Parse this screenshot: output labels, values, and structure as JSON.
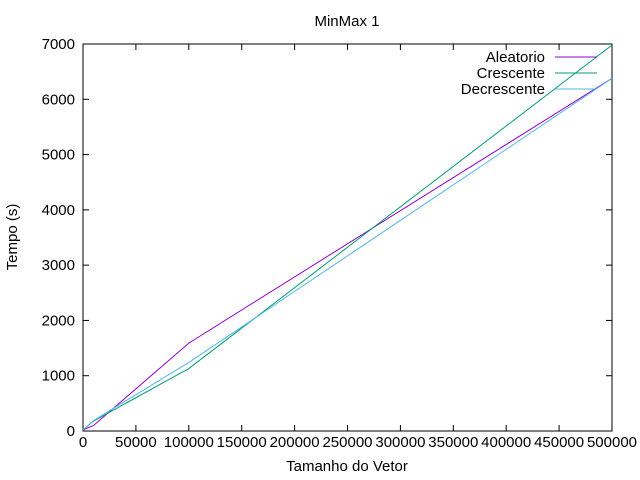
{
  "chart_data": {
    "type": "line",
    "title": "MinMax 1",
    "xlabel": "Tamanho do Vetor",
    "ylabel": "Tempo (s)",
    "xlim": [
      0,
      500000
    ],
    "ylim": [
      0,
      7000
    ],
    "xticks": [
      0,
      50000,
      100000,
      150000,
      200000,
      250000,
      300000,
      350000,
      400000,
      450000,
      500000
    ],
    "yticks": [
      0,
      1000,
      2000,
      3000,
      4000,
      5000,
      6000,
      7000
    ],
    "grid": false,
    "legend_position": "top-right",
    "series": [
      {
        "name": "Aleatorio",
        "color": "#9400d3",
        "x": [
          0,
          10000,
          100000,
          500000
        ],
        "y": [
          20,
          100,
          1590,
          6380
        ]
      },
      {
        "name": "Crescente",
        "color": "#009e73",
        "x": [
          0,
          10000,
          100000,
          500000
        ],
        "y": [
          20,
          180,
          1130,
          6980
        ]
      },
      {
        "name": "Decrescente",
        "color": "#56b4e9",
        "x": [
          0,
          10000,
          100000,
          500000
        ],
        "y": [
          20,
          190,
          1240,
          6380
        ]
      }
    ]
  }
}
